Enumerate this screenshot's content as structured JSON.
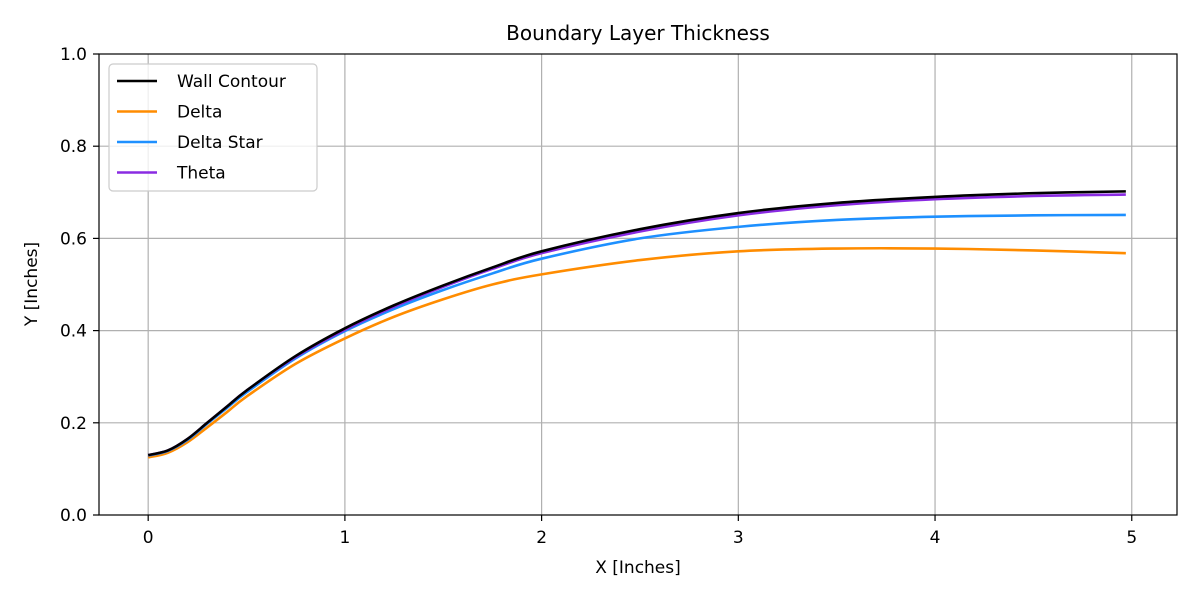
{
  "chart_data": {
    "type": "line",
    "title": "Boundary Layer Thickness",
    "xlabel": "X [Inches]",
    "ylabel": "Y [Inches]",
    "xlim": [
      -0.25,
      5.23
    ],
    "ylim": [
      0.0,
      1.0
    ],
    "xticks": [
      0,
      1,
      2,
      3,
      4,
      5
    ],
    "yticks": [
      0.0,
      0.2,
      0.4,
      0.6,
      0.8,
      1.0
    ],
    "xtick_labels": [
      "0",
      "1",
      "2",
      "3",
      "4",
      "5"
    ],
    "ytick_labels": [
      "0.0",
      "0.2",
      "0.4",
      "0.6",
      "0.8",
      "1.0"
    ],
    "grid": true,
    "legend_position": "top-left",
    "x": [
      0,
      0.1,
      0.2,
      0.3,
      0.4,
      0.5,
      0.75,
      1.0,
      1.25,
      1.5,
      1.75,
      2.0,
      2.5,
      3.0,
      3.5,
      4.0,
      4.5,
      4.97
    ],
    "series": [
      {
        "name": "Wall Contour",
        "color": "#000000",
        "values": [
          0.13,
          0.14,
          0.165,
          0.2,
          0.235,
          0.27,
          0.345,
          0.405,
          0.455,
          0.498,
          0.537,
          0.572,
          0.62,
          0.655,
          0.677,
          0.69,
          0.698,
          0.702
        ]
      },
      {
        "name": "Delta",
        "color": "#ff8c00",
        "values": [
          0.125,
          0.135,
          0.158,
          0.19,
          0.223,
          0.257,
          0.328,
          0.383,
          0.43,
          0.468,
          0.5,
          0.522,
          0.553,
          0.572,
          0.578,
          0.578,
          0.574,
          0.568
        ]
      },
      {
        "name": "Delta Star",
        "color": "#1e90ff",
        "values": [
          0.129,
          0.139,
          0.163,
          0.198,
          0.232,
          0.266,
          0.34,
          0.399,
          0.447,
          0.488,
          0.524,
          0.556,
          0.6,
          0.625,
          0.64,
          0.647,
          0.65,
          0.651
        ]
      },
      {
        "name": "Theta",
        "color": "#8a2be2",
        "values": [
          0.13,
          0.14,
          0.165,
          0.2,
          0.235,
          0.27,
          0.343,
          0.402,
          0.452,
          0.495,
          0.534,
          0.568,
          0.615,
          0.65,
          0.672,
          0.685,
          0.692,
          0.695
        ]
      }
    ]
  }
}
